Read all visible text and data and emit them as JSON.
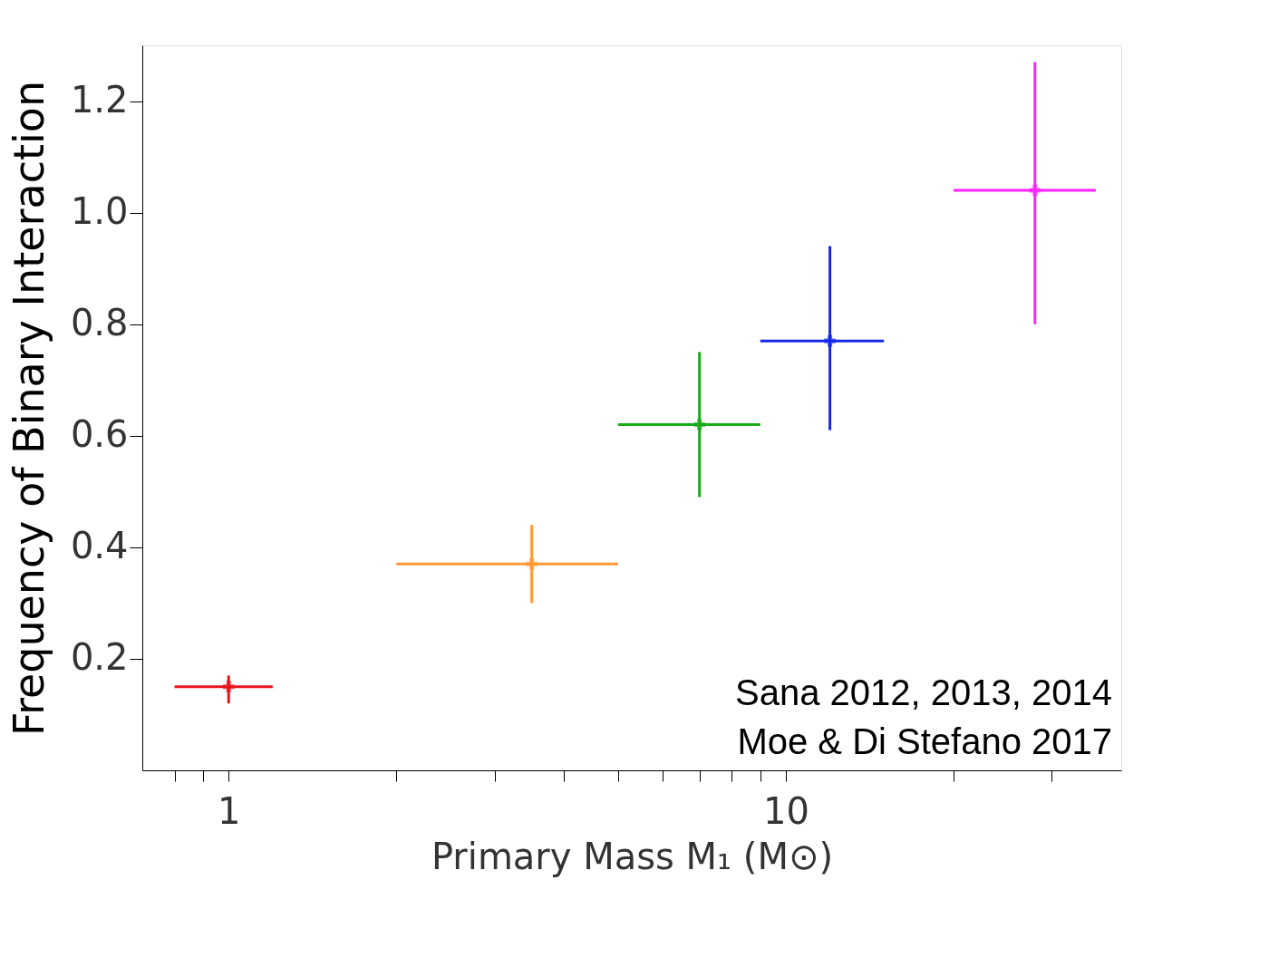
{
  "chart_data": {
    "type": "scatter",
    "xlabel": "Primary Mass M₁ (M⊙)",
    "ylabel": "Frequency of Binary Interaction",
    "log": "x",
    "marker": "cross",
    "grid": false,
    "xlim": [
      0.7,
      40
    ],
    "ylim": [
      0,
      1.3
    ],
    "xticks": [
      {
        "value": 0.8,
        "label": null
      },
      {
        "value": 0.9,
        "label": null
      },
      1,
      {
        "value": 2,
        "label": null
      },
      {
        "value": 3,
        "label": null
      },
      {
        "value": 4,
        "label": null
      },
      {
        "value": 5,
        "label": null
      },
      {
        "value": 6,
        "label": null
      },
      {
        "value": 7,
        "label": null
      },
      {
        "value": 8,
        "label": null
      },
      {
        "value": 9,
        "label": null
      },
      10,
      {
        "value": 20,
        "label": null
      },
      {
        "value": 30,
        "label": null
      }
    ],
    "yticks": [
      0.2,
      0.4,
      0.6,
      0.8,
      {
        "value": 1,
        "label": "1.0"
      },
      1.2
    ],
    "series": [
      {
        "color": "#e8141c",
        "x": [
          1.0
        ],
        "values": [
          0.15
        ],
        "xerrors": [
          [
            0.8,
            1.2
          ]
        ],
        "errors": [
          [
            0.12,
            0.17
          ]
        ]
      },
      {
        "color": "#ff9933",
        "x": [
          3.5
        ],
        "values": [
          0.37
        ],
        "xerrors": [
          [
            2.0,
            5.0
          ]
        ],
        "errors": [
          [
            0.3,
            0.44
          ]
        ]
      },
      {
        "color": "#1aaa1a",
        "x": [
          7.0
        ],
        "values": [
          0.62
        ],
        "xerrors": [
          [
            5.0,
            9.0
          ]
        ],
        "errors": [
          [
            0.49,
            0.75
          ]
        ]
      },
      {
        "color": "#1428e8",
        "x": [
          12
        ],
        "values": [
          0.77
        ],
        "xerrors": [
          [
            9.0,
            15
          ]
        ],
        "errors": [
          [
            0.61,
            0.94
          ]
        ]
      },
      {
        "color": "#ff22ff",
        "x": [
          28
        ],
        "values": [
          1.04
        ],
        "xerrors": [
          [
            20,
            36
          ]
        ],
        "errors": [
          [
            0.8,
            1.27
          ]
        ]
      }
    ],
    "annotations": [
      "Sana 2012, 2013, 2014",
      "Moe & Di Stefano 2017"
    ]
  }
}
